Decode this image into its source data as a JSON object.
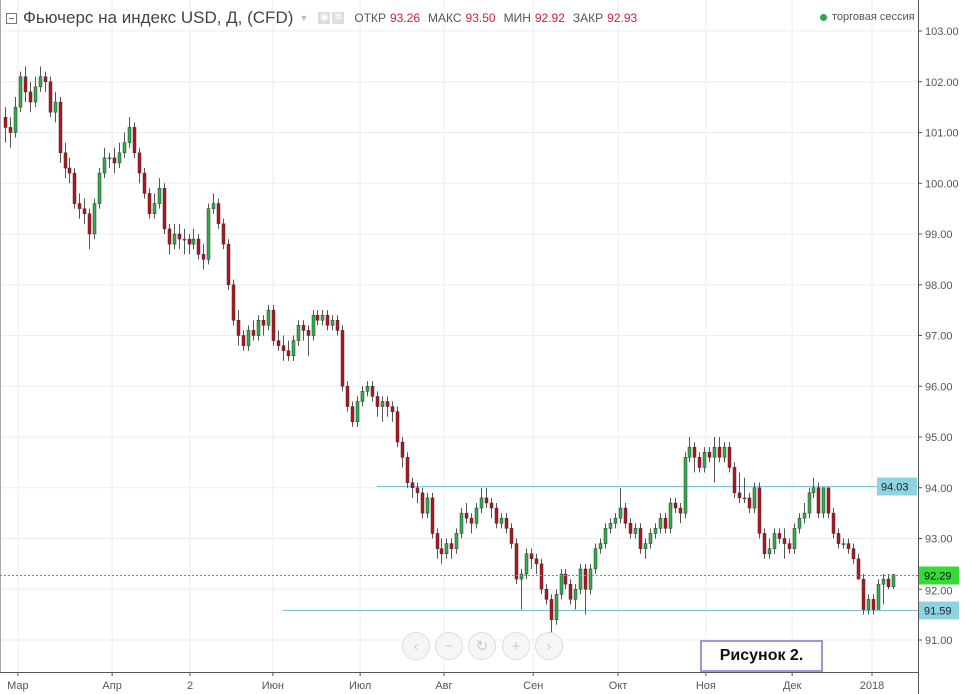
{
  "header": {
    "title": "Фьючерс на индекс USD, Д, (CFD)",
    "open_label": "ОТКР",
    "open": "93.26",
    "high_label": "МАКС",
    "high": "93.50",
    "low_label": "МИН",
    "low": "92.92",
    "close_label": "ЗАКР",
    "close": "92.93",
    "session": "торговая сессия"
  },
  "nav_buttons": [
    "‹",
    "−",
    "↻",
    "+",
    "›"
  ],
  "figure_label": "Рисунок 2.",
  "colors": {
    "up": "#2fae4b",
    "down": "#b3141f",
    "hline": "#7fc4d6",
    "hline_label": "#8fd3e3",
    "last_price": "#33dd33"
  },
  "chart_data": {
    "type": "candlestick",
    "ylim": [
      90.5,
      103.4
    ],
    "y_ticks": [
      "103.00",
      "102.00",
      "101.00",
      "100.00",
      "99.00",
      "98.00",
      "97.00",
      "96.00",
      "95.00",
      "94.00",
      "93.00",
      "92.00",
      "91.00"
    ],
    "x_ticks": [
      {
        "label": "Мар",
        "bar": 2.6
      },
      {
        "label": "Апр",
        "bar": 21.6
      },
      {
        "label": "2",
        "bar": 37.3
      },
      {
        "label": "Июн",
        "bar": 54
      },
      {
        "label": "Июл",
        "bar": 71.6
      },
      {
        "label": "Авг",
        "bar": 88.5
      },
      {
        "label": "Сен",
        "bar": 106.5
      },
      {
        "label": "Окт",
        "bar": 123.6
      },
      {
        "label": "Ноя",
        "bar": 141.3
      },
      {
        "label": "Дек",
        "bar": 158.7
      },
      {
        "label": "2018",
        "bar": 174.8
      }
    ],
    "grid": true,
    "horizontal_lines": [
      {
        "value": 94.03,
        "label": "94.03",
        "from_bar": 75
      },
      {
        "value": 91.59,
        "label": "91.59",
        "from_bar": 56
      }
    ],
    "last_price": {
      "value": 92.29,
      "label": "92.29"
    },
    "candles_ohlc": [
      [
        101.3,
        101.5,
        100.8,
        101.1
      ],
      [
        101.1,
        101.3,
        100.7,
        101.0
      ],
      [
        101.0,
        101.7,
        100.9,
        101.5
      ],
      [
        101.5,
        102.2,
        101.4,
        102.1
      ],
      [
        102.1,
        102.3,
        101.6,
        101.8
      ],
      [
        101.8,
        102.0,
        101.4,
        101.6
      ],
      [
        101.6,
        102.1,
        101.5,
        101.9
      ],
      [
        101.9,
        102.3,
        101.8,
        102.1
      ],
      [
        102.1,
        102.2,
        101.8,
        102.0
      ],
      [
        102.0,
        102.1,
        101.3,
        101.4
      ],
      [
        101.4,
        101.8,
        101.2,
        101.6
      ],
      [
        101.6,
        101.7,
        100.4,
        100.6
      ],
      [
        100.6,
        100.8,
        100.1,
        100.3
      ],
      [
        100.3,
        100.5,
        100.0,
        100.2
      ],
      [
        100.2,
        100.3,
        99.5,
        99.6
      ],
      [
        99.6,
        99.8,
        99.3,
        99.5
      ],
      [
        99.5,
        99.7,
        99.2,
        99.4
      ],
      [
        99.4,
        99.5,
        98.7,
        99.0
      ],
      [
        99.0,
        99.7,
        98.9,
        99.6
      ],
      [
        99.6,
        100.3,
        99.5,
        100.2
      ],
      [
        100.2,
        100.7,
        100.1,
        100.5
      ],
      [
        100.5,
        100.6,
        100.3,
        100.5
      ],
      [
        100.5,
        100.7,
        100.2,
        100.4
      ],
      [
        100.4,
        100.8,
        100.3,
        100.6
      ],
      [
        100.6,
        101.0,
        100.5,
        100.8
      ],
      [
        100.8,
        101.3,
        100.7,
        101.1
      ],
      [
        101.1,
        101.2,
        100.5,
        100.6
      ],
      [
        100.6,
        100.7,
        100.0,
        100.2
      ],
      [
        100.2,
        100.3,
        99.7,
        99.8
      ],
      [
        99.8,
        99.9,
        99.3,
        99.4
      ],
      [
        99.4,
        99.8,
        99.3,
        99.6
      ],
      [
        99.6,
        100.1,
        99.5,
        99.9
      ],
      [
        99.9,
        100.0,
        99.0,
        99.1
      ],
      [
        99.1,
        99.2,
        98.6,
        98.8
      ],
      [
        98.8,
        99.2,
        98.7,
        99.0
      ],
      [
        99.0,
        99.2,
        98.7,
        98.9
      ],
      [
        98.9,
        99.1,
        98.6,
        98.9
      ],
      [
        98.9,
        99.0,
        98.6,
        98.8
      ],
      [
        98.8,
        99.1,
        98.7,
        98.9
      ],
      [
        98.9,
        99.0,
        98.5,
        98.6
      ],
      [
        98.6,
        98.8,
        98.3,
        98.5
      ],
      [
        98.5,
        99.6,
        98.4,
        99.5
      ],
      [
        99.5,
        99.8,
        99.4,
        99.6
      ],
      [
        99.6,
        99.7,
        99.1,
        99.2
      ],
      [
        99.2,
        99.3,
        98.7,
        98.8
      ],
      [
        98.8,
        98.9,
        97.9,
        98.0
      ],
      [
        98.0,
        98.1,
        97.2,
        97.3
      ],
      [
        97.3,
        97.5,
        96.8,
        97.0
      ],
      [
        97.0,
        97.1,
        96.7,
        96.8
      ],
      [
        96.8,
        97.2,
        96.7,
        97.1
      ],
      [
        97.1,
        97.3,
        96.9,
        97.0
      ],
      [
        97.0,
        97.4,
        96.9,
        97.3
      ],
      [
        97.3,
        97.4,
        97.0,
        97.2
      ],
      [
        97.2,
        97.6,
        97.1,
        97.5
      ],
      [
        97.5,
        97.6,
        96.8,
        96.9
      ],
      [
        96.9,
        97.1,
        96.7,
        96.8
      ],
      [
        96.8,
        97.0,
        96.5,
        96.7
      ],
      [
        96.7,
        96.9,
        96.5,
        96.6
      ],
      [
        96.6,
        97.0,
        96.5,
        96.9
      ],
      [
        96.9,
        97.3,
        96.8,
        97.2
      ],
      [
        97.2,
        97.3,
        96.9,
        97.1
      ],
      [
        97.1,
        97.2,
        96.6,
        97.0
      ],
      [
        97.0,
        97.5,
        96.9,
        97.4
      ],
      [
        97.4,
        97.5,
        97.2,
        97.3
      ],
      [
        97.3,
        97.5,
        97.2,
        97.4
      ],
      [
        97.4,
        97.5,
        97.1,
        97.2
      ],
      [
        97.2,
        97.4,
        97.1,
        97.3
      ],
      [
        97.3,
        97.4,
        97.0,
        97.1
      ],
      [
        97.1,
        97.2,
        95.9,
        96.0
      ],
      [
        96.0,
        96.1,
        95.5,
        95.6
      ],
      [
        95.6,
        95.7,
        95.2,
        95.3
      ],
      [
        95.3,
        95.8,
        95.2,
        95.7
      ],
      [
        95.7,
        96.0,
        95.6,
        95.9
      ],
      [
        95.9,
        96.1,
        95.8,
        96.0
      ],
      [
        96.0,
        96.1,
        95.7,
        95.8
      ],
      [
        95.8,
        95.9,
        95.4,
        95.6
      ],
      [
        95.6,
        95.8,
        95.3,
        95.7
      ],
      [
        95.7,
        95.8,
        95.4,
        95.6
      ],
      [
        95.6,
        95.7,
        95.3,
        95.5
      ],
      [
        95.5,
        95.6,
        94.8,
        94.9
      ],
      [
        94.9,
        95.0,
        94.4,
        94.6
      ],
      [
        94.6,
        94.7,
        94.0,
        94.1
      ],
      [
        94.1,
        94.2,
        93.8,
        94.0
      ],
      [
        94.0,
        94.1,
        93.7,
        93.9
      ],
      [
        93.9,
        94.0,
        93.4,
        93.5
      ],
      [
        93.5,
        93.9,
        93.4,
        93.8
      ],
      [
        93.8,
        93.9,
        93.0,
        93.1
      ],
      [
        93.1,
        93.2,
        92.6,
        92.8
      ],
      [
        92.8,
        93.0,
        92.5,
        92.7
      ],
      [
        92.7,
        93.0,
        92.6,
        92.9
      ],
      [
        92.9,
        93.0,
        92.6,
        92.8
      ],
      [
        92.8,
        93.2,
        92.7,
        93.1
      ],
      [
        93.1,
        93.6,
        93.0,
        93.5
      ],
      [
        93.5,
        93.7,
        93.3,
        93.4
      ],
      [
        93.4,
        93.5,
        93.1,
        93.3
      ],
      [
        93.3,
        93.7,
        93.2,
        93.6
      ],
      [
        93.6,
        94.0,
        93.5,
        93.8
      ],
      [
        93.8,
        94.0,
        93.6,
        93.7
      ],
      [
        93.7,
        93.8,
        93.4,
        93.6
      ],
      [
        93.6,
        93.7,
        93.2,
        93.3
      ],
      [
        93.3,
        93.5,
        93.2,
        93.4
      ],
      [
        93.4,
        93.5,
        93.1,
        93.2
      ],
      [
        93.2,
        93.3,
        92.8,
        92.9
      ],
      [
        92.9,
        93.0,
        92.1,
        92.2
      ],
      [
        92.2,
        92.4,
        91.6,
        92.3
      ],
      [
        92.3,
        92.8,
        92.2,
        92.7
      ],
      [
        92.7,
        92.8,
        92.4,
        92.6
      ],
      [
        92.6,
        92.7,
        92.3,
        92.5
      ],
      [
        92.5,
        92.6,
        91.9,
        92.0
      ],
      [
        92.0,
        92.1,
        91.7,
        91.8
      ],
      [
        91.8,
        91.9,
        91.1,
        91.4
      ],
      [
        91.4,
        92.0,
        91.3,
        91.9
      ],
      [
        91.9,
        92.4,
        91.8,
        92.3
      ],
      [
        92.3,
        92.4,
        92.0,
        92.1
      ],
      [
        92.1,
        92.2,
        91.7,
        91.8
      ],
      [
        91.8,
        92.1,
        91.6,
        92.0
      ],
      [
        92.0,
        92.5,
        91.9,
        92.4
      ],
      [
        92.4,
        92.5,
        91.5,
        92.0
      ],
      [
        92.0,
        92.5,
        91.9,
        92.4
      ],
      [
        92.4,
        92.9,
        92.3,
        92.8
      ],
      [
        92.8,
        93.0,
        92.7,
        92.9
      ],
      [
        92.9,
        93.3,
        92.8,
        93.2
      ],
      [
        93.2,
        93.4,
        93.1,
        93.3
      ],
      [
        93.3,
        93.5,
        93.2,
        93.4
      ],
      [
        93.4,
        94.0,
        93.3,
        93.6
      ],
      [
        93.6,
        93.7,
        93.2,
        93.3
      ],
      [
        93.3,
        93.4,
        93.0,
        93.1
      ],
      [
        93.1,
        93.3,
        93.0,
        93.2
      ],
      [
        93.2,
        93.3,
        92.7,
        92.8
      ],
      [
        92.8,
        93.0,
        92.6,
        92.9
      ],
      [
        92.9,
        93.2,
        92.8,
        93.1
      ],
      [
        93.1,
        93.3,
        93.0,
        93.2
      ],
      [
        93.2,
        93.5,
        93.1,
        93.4
      ],
      [
        93.4,
        93.5,
        93.1,
        93.2
      ],
      [
        93.2,
        93.8,
        93.1,
        93.7
      ],
      [
        93.7,
        93.8,
        93.5,
        93.6
      ],
      [
        93.6,
        93.7,
        93.3,
        93.5
      ],
      [
        93.5,
        94.7,
        93.4,
        94.6
      ],
      [
        94.6,
        95.0,
        94.5,
        94.8
      ],
      [
        94.8,
        94.9,
        94.3,
        94.6
      ],
      [
        94.6,
        94.7,
        94.3,
        94.4
      ],
      [
        94.4,
        94.8,
        94.3,
        94.7
      ],
      [
        94.7,
        94.8,
        94.5,
        94.6
      ],
      [
        94.6,
        95.0,
        94.1,
        94.8
      ],
      [
        94.8,
        95.0,
        94.5,
        94.6
      ],
      [
        94.6,
        94.9,
        94.5,
        94.8
      ],
      [
        94.8,
        94.9,
        94.3,
        94.4
      ],
      [
        94.4,
        94.5,
        93.8,
        93.9
      ],
      [
        93.9,
        94.3,
        93.7,
        93.8
      ],
      [
        93.8,
        94.2,
        93.7,
        93.8
      ],
      [
        93.8,
        93.9,
        93.5,
        93.6
      ],
      [
        93.6,
        94.1,
        93.5,
        94.0
      ],
      [
        94.0,
        94.1,
        93.0,
        93.1
      ],
      [
        93.1,
        93.2,
        92.6,
        92.7
      ],
      [
        92.7,
        93.0,
        92.6,
        92.8
      ],
      [
        92.8,
        93.2,
        92.7,
        93.1
      ],
      [
        93.1,
        93.2,
        92.9,
        93.0
      ],
      [
        93.0,
        93.2,
        92.6,
        92.9
      ],
      [
        92.9,
        93.0,
        92.7,
        92.8
      ],
      [
        92.8,
        93.3,
        92.7,
        93.2
      ],
      [
        93.2,
        93.5,
        93.1,
        93.4
      ],
      [
        93.4,
        93.7,
        93.3,
        93.5
      ],
      [
        93.5,
        94.0,
        93.4,
        93.9
      ],
      [
        93.9,
        94.2,
        93.8,
        94.0
      ],
      [
        94.0,
        94.1,
        93.4,
        93.5
      ],
      [
        93.5,
        94.0,
        93.4,
        94.0
      ],
      [
        94.0,
        94.0,
        93.4,
        93.5
      ],
      [
        93.5,
        93.6,
        93.0,
        93.1
      ],
      [
        93.1,
        93.2,
        92.8,
        92.9
      ],
      [
        92.9,
        93.0,
        92.8,
        92.9
      ],
      [
        92.9,
        93.0,
        92.7,
        92.8
      ],
      [
        92.8,
        92.9,
        92.5,
        92.6
      ],
      [
        92.6,
        92.7,
        92.2,
        92.2
      ],
      [
        92.2,
        92.3,
        91.5,
        91.6
      ],
      [
        91.6,
        91.9,
        91.5,
        91.8
      ],
      [
        91.8,
        91.9,
        91.5,
        91.6
      ],
      [
        91.6,
        92.2,
        91.6,
        92.1
      ],
      [
        92.1,
        92.3,
        91.7,
        92.2
      ],
      [
        92.2,
        92.3,
        92.0,
        92.05
      ],
      [
        92.05,
        92.3,
        92.0,
        92.29
      ]
    ]
  }
}
